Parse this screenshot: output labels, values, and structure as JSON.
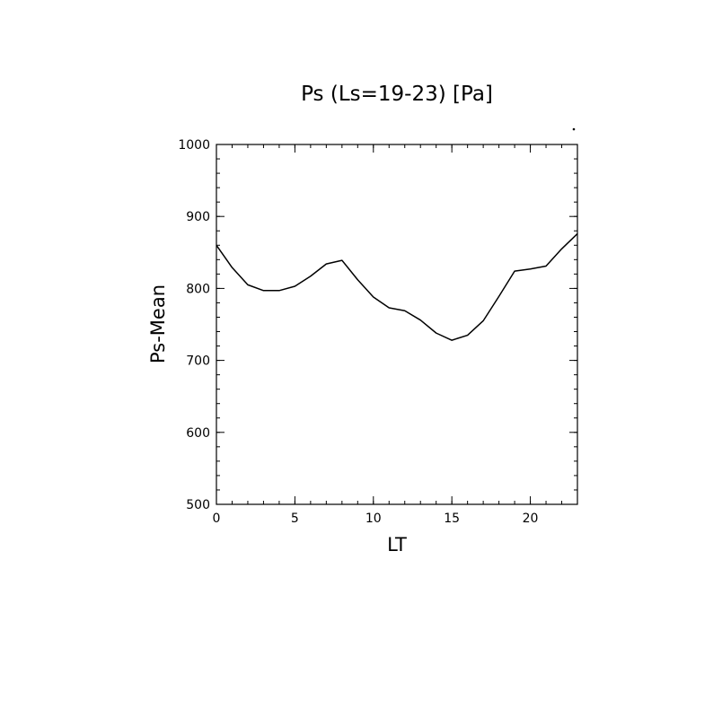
{
  "chart_data": {
    "type": "line",
    "title": "Ps (Ls=19-23) [Pa]",
    "xlabel": "LT",
    "ylabel": "Ps-Mean",
    "xlim": [
      0,
      23
    ],
    "ylim": [
      500,
      1000
    ],
    "x_ticks": [
      0,
      5,
      10,
      15,
      20
    ],
    "y_ticks": [
      500,
      600,
      700,
      800,
      900,
      1000
    ],
    "x_minor_step": 1,
    "y_minor_step": 20,
    "grid": false,
    "series": [
      {
        "x": [
          0,
          1,
          2,
          3,
          4,
          5,
          6,
          7,
          8,
          9,
          10,
          11,
          12,
          13,
          14,
          15,
          16,
          17,
          18,
          19,
          20,
          21,
          22,
          23
        ],
        "values": [
          860,
          829,
          805,
          797,
          797,
          803,
          817,
          834,
          839,
          812,
          788,
          773,
          769,
          756,
          738,
          728,
          735,
          755,
          789,
          824,
          827,
          831,
          855,
          876
        ],
        "color": "#000000"
      }
    ]
  }
}
